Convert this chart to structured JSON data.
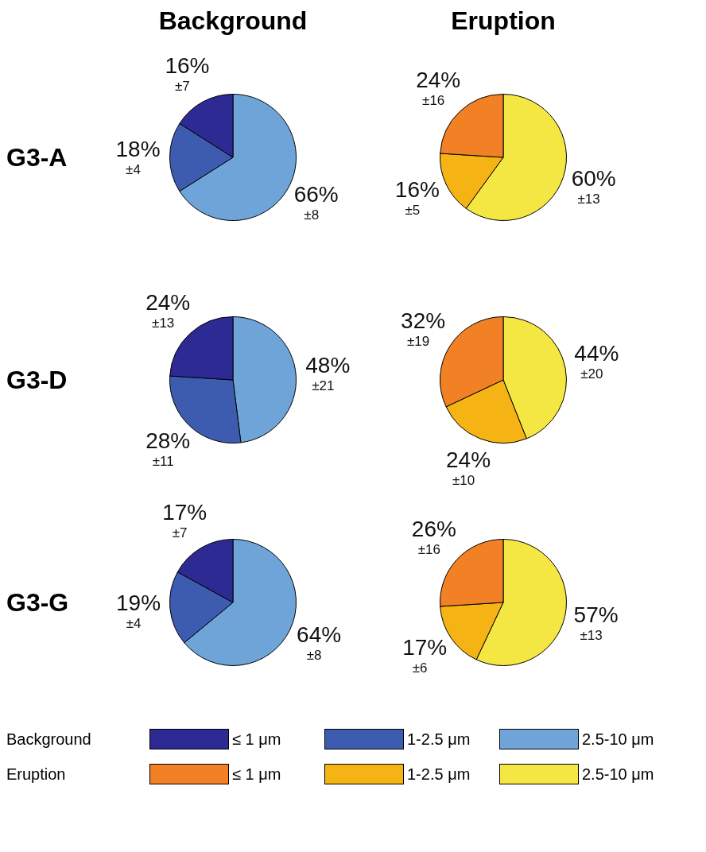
{
  "chart_data": [
    {
      "type": "pie",
      "title": "Background",
      "ylabel": "G3-A",
      "legend": "bottom",
      "legend_title": "Background",
      "categories": [
        "≤ 1 μm",
        "1-2.5 μm",
        "2.5-10 μm"
      ],
      "values": [
        16,
        18,
        66
      ],
      "value_labels": [
        "16%",
        "18%",
        "66%"
      ],
      "colors": [
        "#2e2a94",
        "#3d5cb0",
        "#6fa4d8"
      ],
      "annotations": [
        "±7",
        "±4",
        "±8"
      ]
    },
    {
      "type": "pie",
      "title": "Eruption",
      "legend": "bottom",
      "legend_title": "Eruption",
      "categories": [
        "≤ 1 μm",
        "1-2.5 μm",
        "2.5-10 μm"
      ],
      "values": [
        24,
        16,
        60
      ],
      "value_labels": [
        "24%",
        "16%",
        "60%"
      ],
      "colors": [
        "#f28024",
        "#f6b414",
        "#f5e743"
      ],
      "annotations": [
        "±16",
        "±5",
        "±13"
      ]
    },
    {
      "type": "pie",
      "ylabel": "G3-D",
      "categories": [
        null,
        null,
        null
      ],
      "values": [
        24,
        28,
        48
      ],
      "value_labels": [
        "24%",
        "28%",
        "48%"
      ],
      "colors": [
        "#2e2a94",
        "#3d5cb0",
        "#6fa4d8"
      ],
      "annotations": [
        "±13",
        "±11",
        "±21"
      ]
    },
    {
      "type": "pie",
      "categories": [
        null,
        null,
        null
      ],
      "values": [
        32,
        24,
        44
      ],
      "value_labels": [
        "32%",
        "24%",
        "44%"
      ],
      "colors": [
        "#f28024",
        "#f6b414",
        "#f5e743"
      ],
      "annotations": [
        "±19",
        "±10",
        "±20"
      ]
    },
    {
      "type": "pie",
      "ylabel": "G3-G",
      "categories": [
        null,
        null,
        null
      ],
      "values": [
        17,
        19,
        64
      ],
      "value_labels": [
        "17%",
        "19%",
        "64%"
      ],
      "colors": [
        "#2e2a94",
        "#3d5cb0",
        "#6fa4d8"
      ],
      "annotations": [
        "±7",
        "±4",
        "±8"
      ]
    },
    {
      "type": "pie",
      "categories": [
        null,
        null,
        null
      ],
      "values": [
        26,
        17,
        57
      ],
      "value_labels": [
        "26%",
        "17%",
        "57%"
      ],
      "colors": [
        "#f28024",
        "#f6b414",
        "#f5e743"
      ],
      "annotations": [
        "±16",
        "±6",
        "±13"
      ]
    }
  ]
}
